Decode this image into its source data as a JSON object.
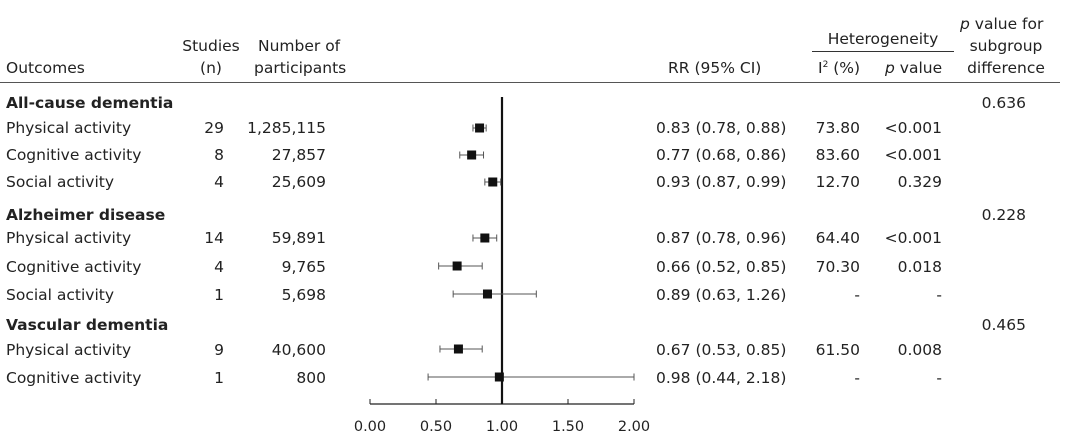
{
  "headers": {
    "outcomes": "Outcomes",
    "studies_1": "Studies",
    "studies_2": "(n)",
    "participants_1": "Number of",
    "participants_2": "participants",
    "rr": "RR (95% CI)",
    "heterogeneity": "Heterogeneity",
    "i2_base": "I",
    "i2_sup": "2",
    "i2_unit": " (%)",
    "pval_italic": "p",
    "pval_rest": " value",
    "subgroup_1_italic": "p",
    "subgroup_1_rest": " value for",
    "subgroup_2": "subgroup",
    "subgroup_3": "difference"
  },
  "groups": [
    {
      "title": "All-cause dementia",
      "subgroup_p": "0.636"
    },
    {
      "title": "Alzheimer disease",
      "subgroup_p": "0.228"
    },
    {
      "title": "Vascular dementia",
      "subgroup_p": "0.465"
    }
  ],
  "rows": [
    {
      "label": "Physical activity",
      "studies": "29",
      "participants": "1,285,115",
      "rr_text": "0.83 (0.78, 0.88)",
      "i2": "73.80",
      "p": "<0.001"
    },
    {
      "label": "Cognitive activity",
      "studies": "8",
      "participants": "27,857",
      "rr_text": "0.77 (0.68, 0.86)",
      "i2": "83.60",
      "p": "<0.001"
    },
    {
      "label": "Social activity",
      "studies": "4",
      "participants": "25,609",
      "rr_text": "0.93 (0.87, 0.99)",
      "i2": "12.70",
      "p": "0.329"
    },
    {
      "label": "Physical activity",
      "studies": "14",
      "participants": "59,891",
      "rr_text": "0.87 (0.78, 0.96)",
      "i2": "64.40",
      "p": "<0.001"
    },
    {
      "label": "Cognitive activity",
      "studies": "4",
      "participants": "9,765",
      "rr_text": "0.66 (0.52, 0.85)",
      "i2": "70.30",
      "p": "0.018"
    },
    {
      "label": "Social activity",
      "studies": "1",
      "participants": "5,698",
      "rr_text": "0.89 (0.63, 1.26)",
      "i2": "-",
      "p": "-"
    },
    {
      "label": "Physical activity",
      "studies": "9",
      "participants": "40,600",
      "rr_text": "0.67 (0.53, 0.85)",
      "i2": "61.50",
      "p": "0.008"
    },
    {
      "label": "Cognitive activity",
      "studies": "1",
      "participants": "800",
      "rr_text": "0.98 (0.44, 2.18)",
      "i2": "-",
      "p": "-"
    }
  ],
  "chart_data": {
    "type": "scatter",
    "subtype": "forest-plot",
    "x_reference": 1.0,
    "xlim": [
      0.0,
      2.0
    ],
    "xticks": [
      "0.00",
      "0.50",
      "1.00",
      "1.50",
      "2.00"
    ],
    "xtick_values": [
      0,
      0.5,
      1.0,
      1.5,
      2.0
    ],
    "series": [
      {
        "group": "All-cause dementia",
        "name": "Physical activity",
        "rr": 0.83,
        "lo": 0.78,
        "hi": 0.88
      },
      {
        "group": "All-cause dementia",
        "name": "Cognitive activity",
        "rr": 0.77,
        "lo": 0.68,
        "hi": 0.86
      },
      {
        "group": "All-cause dementia",
        "name": "Social activity",
        "rr": 0.93,
        "lo": 0.87,
        "hi": 0.99
      },
      {
        "group": "Alzheimer disease",
        "name": "Physical activity",
        "rr": 0.87,
        "lo": 0.78,
        "hi": 0.96
      },
      {
        "group": "Alzheimer disease",
        "name": "Cognitive activity",
        "rr": 0.66,
        "lo": 0.52,
        "hi": 0.85
      },
      {
        "group": "Alzheimer disease",
        "name": "Social activity",
        "rr": 0.89,
        "lo": 0.63,
        "hi": 1.26
      },
      {
        "group": "Vascular dementia",
        "name": "Physical activity",
        "rr": 0.67,
        "lo": 0.53,
        "hi": 0.85
      },
      {
        "group": "Vascular dementia",
        "name": "Cognitive activity",
        "rr": 0.98,
        "lo": 0.44,
        "hi": 2.18
      }
    ]
  }
}
